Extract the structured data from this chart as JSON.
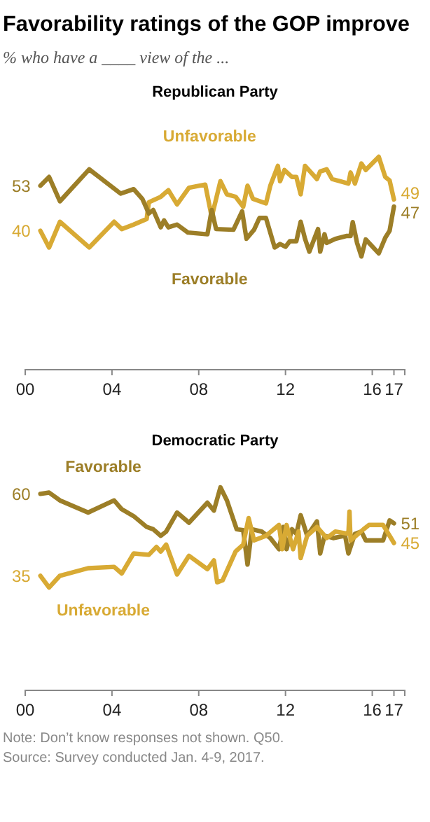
{
  "chart_data": [
    {
      "type": "line",
      "title": "Favorability ratings of the GOP improve",
      "subtitle": "% who have a ____ view of the ...",
      "legend_title": "Republican Party",
      "tick_labels": "x",
      "xlim": [
        2000,
        2017.5
      ],
      "xticks": [
        {
          "value": 2000,
          "label": "00"
        },
        {
          "value": 2004,
          "label": "04"
        },
        {
          "value": 2008,
          "label": "08"
        },
        {
          "value": 2012,
          "label": "12"
        },
        {
          "value": 2016,
          "label": "16"
        },
        {
          "value": 2017,
          "label": "17"
        }
      ],
      "series": [
        {
          "name": "Unfavorable",
          "color": "#d8aa34",
          "x": [
            2000.7,
            2001.1,
            2001.6,
            2002.95,
            2004.1,
            2004.45,
            2005,
            2005.6,
            2005.7,
            2006.25,
            2006.6,
            2007,
            2007.55,
            2008.3,
            2008.6,
            2009,
            2009.3,
            2009.7,
            2010.05,
            2010.25,
            2010.5,
            2011.1,
            2011.3,
            2011.65,
            2011.75,
            2011.95,
            2012.3,
            2012.5,
            2012.7,
            2012.9,
            2013.45,
            2013.6,
            2013.9,
            2014.15,
            2014.9,
            2015,
            2015.2,
            2015.5,
            2015.7,
            2016.3,
            2016.6,
            2016.8,
            2017
          ],
          "values": [
            40,
            35.2,
            42.6,
            35.2,
            42.6,
            40.5,
            41.8,
            43.4,
            48.2,
            49.8,
            51.7,
            47.6,
            52.4,
            53.3,
            44,
            54.3,
            50.5,
            49.8,
            46.9,
            53,
            49.2,
            47.9,
            53,
            58.7,
            54.3,
            57.5,
            55.5,
            55.5,
            50.5,
            58.7,
            54.9,
            57.1,
            57.7,
            54.9,
            53.6,
            56.8,
            53.6,
            59.4,
            57.5,
            61.3,
            55.5,
            54.5,
            49
          ],
          "value_labels": [
            "40",
            null,
            null,
            null,
            null,
            null,
            null,
            null,
            null,
            null,
            null,
            null,
            null,
            null,
            null,
            null,
            null,
            null,
            null,
            null,
            null,
            null,
            null,
            null,
            null,
            null,
            null,
            null,
            null,
            null,
            null,
            null,
            null,
            null,
            null,
            null,
            null,
            null,
            null,
            null,
            null,
            null,
            "49"
          ]
        },
        {
          "name": "Favorable",
          "color": "#9c7e27",
          "x": [
            2000.7,
            2001.1,
            2001.6,
            2002.95,
            2004.4,
            2005,
            2005.4,
            2005.7,
            2005.9,
            2006.25,
            2006.4,
            2006.6,
            2007,
            2007.5,
            2008.4,
            2008.6,
            2008.8,
            2009.6,
            2010,
            2010.2,
            2010.55,
            2010.8,
            2011.1,
            2011.5,
            2011.75,
            2012,
            2012.2,
            2012.5,
            2012.7,
            2012.9,
            2013.1,
            2013.5,
            2013.6,
            2013.8,
            2013.9,
            2014.3,
            2014.8,
            2015,
            2015.1,
            2015.3,
            2015.5,
            2015.7,
            2016.3,
            2016.6,
            2016.8,
            2017
          ],
          "values": [
            53,
            55.5,
            48.5,
            57.7,
            50.7,
            52,
            49.2,
            45,
            46,
            41,
            43,
            41,
            41.8,
            39.5,
            39,
            46,
            40.5,
            40.3,
            45.6,
            37.7,
            40.3,
            43.7,
            43.7,
            35.2,
            36.2,
            35.4,
            37,
            37,
            42.6,
            37.7,
            34,
            40.5,
            34,
            39,
            36.5,
            37.7,
            38.5,
            38.5,
            42.5,
            36.5,
            32.6,
            37.5,
            33.5,
            38,
            40,
            47
          ],
          "value_labels": [
            "53",
            null,
            null,
            null,
            null,
            null,
            null,
            null,
            null,
            null,
            null,
            null,
            null,
            null,
            null,
            null,
            null,
            null,
            null,
            null,
            null,
            null,
            null,
            null,
            null,
            null,
            null,
            null,
            null,
            null,
            null,
            null,
            null,
            null,
            null,
            null,
            null,
            null,
            null,
            null,
            null,
            null,
            null,
            null,
            null,
            "47"
          ]
        }
      ]
    },
    {
      "type": "line",
      "legend_title": "Democratic Party",
      "tick_labels": "x",
      "xlim": [
        2000,
        2017.5
      ],
      "xticks": [
        {
          "value": 2000,
          "label": "00"
        },
        {
          "value": 2004,
          "label": "04"
        },
        {
          "value": 2008,
          "label": "08"
        },
        {
          "value": 2012,
          "label": "12"
        },
        {
          "value": 2016,
          "label": "16"
        },
        {
          "value": 2017,
          "label": "17"
        }
      ],
      "series": [
        {
          "name": "Favorable",
          "color": "#9c7e27",
          "x": [
            2000.7,
            2001.1,
            2001.6,
            2002.9,
            2004.1,
            2004.45,
            2005,
            2005.6,
            2005.9,
            2006.25,
            2006.5,
            2007,
            2007.55,
            2008.4,
            2008.7,
            2009,
            2009.3,
            2009.75,
            2010.05,
            2010.25,
            2010.45,
            2010.9,
            2011.3,
            2011.7,
            2011.9,
            2012.05,
            2012.3,
            2012.5,
            2012.7,
            2013,
            2013.45,
            2013.6,
            2013.8,
            2014.2,
            2014.75,
            2014.9,
            2015.2,
            2015.5,
            2015.7,
            2016.5,
            2016.8,
            2017
          ],
          "values": [
            60,
            60.4,
            58,
            54.3,
            58,
            55.3,
            53.2,
            49.9,
            49.2,
            47.2,
            48.5,
            54.3,
            51.2,
            57.3,
            54.9,
            62,
            58,
            49.2,
            48.9,
            38.4,
            49.2,
            48.5,
            46.5,
            43.1,
            49.9,
            43.1,
            49.2,
            47.8,
            53.5,
            47.2,
            51.6,
            41.8,
            47.2,
            46.5,
            47.2,
            41.8,
            47.8,
            48.5,
            45.8,
            45.8,
            51.9,
            51
          ],
          "value_labels": [
            "60",
            null,
            null,
            null,
            null,
            null,
            null,
            null,
            null,
            null,
            null,
            null,
            null,
            null,
            null,
            null,
            null,
            null,
            null,
            null,
            null,
            null,
            null,
            null,
            null,
            null,
            null,
            null,
            null,
            null,
            null,
            null,
            null,
            null,
            null,
            null,
            null,
            null,
            null,
            null,
            null,
            "51"
          ]
        },
        {
          "name": "Unfavorable",
          "color": "#d8aa34",
          "x": [
            2000.7,
            2001.1,
            2001.6,
            2002.9,
            2004.1,
            2004.45,
            2005,
            2005.7,
            2006.05,
            2006.25,
            2006.5,
            2007,
            2007.55,
            2008.4,
            2008.7,
            2008.85,
            2009.1,
            2009.7,
            2010.05,
            2010.3,
            2010.55,
            2011.1,
            2011.7,
            2011.85,
            2012.05,
            2012.35,
            2012.6,
            2012.7,
            2013,
            2013.45,
            2013.9,
            2014.3,
            2014.9,
            2014.95,
            2015,
            2015.6,
            2015.85,
            2016.5,
            2016.8,
            2017
          ],
          "values": [
            35,
            31.4,
            35,
            37.3,
            37.7,
            35.7,
            41.8,
            41.4,
            43.8,
            42.4,
            44.5,
            35.4,
            41.1,
            37,
            39.7,
            33,
            33.6,
            42.4,
            44.5,
            52.6,
            45.8,
            47.2,
            50.5,
            43.1,
            50.5,
            43.1,
            48.5,
            40.4,
            47.2,
            49.9,
            46.5,
            48.5,
            47.8,
            54.6,
            45.8,
            49.2,
            50.5,
            50.5,
            47.2,
            45
          ],
          "value_labels": [
            "35",
            null,
            null,
            null,
            null,
            null,
            null,
            null,
            null,
            null,
            null,
            null,
            null,
            null,
            null,
            null,
            null,
            null,
            null,
            null,
            null,
            null,
            null,
            null,
            null,
            null,
            null,
            null,
            null,
            null,
            null,
            null,
            null,
            null,
            null,
            null,
            null,
            null,
            null,
            "45"
          ]
        }
      ],
      "annotations": [
        "Note: Don’t know responses not shown. Q50.",
        "Source: Survey conducted Jan. 4-9, 2017."
      ]
    }
  ]
}
